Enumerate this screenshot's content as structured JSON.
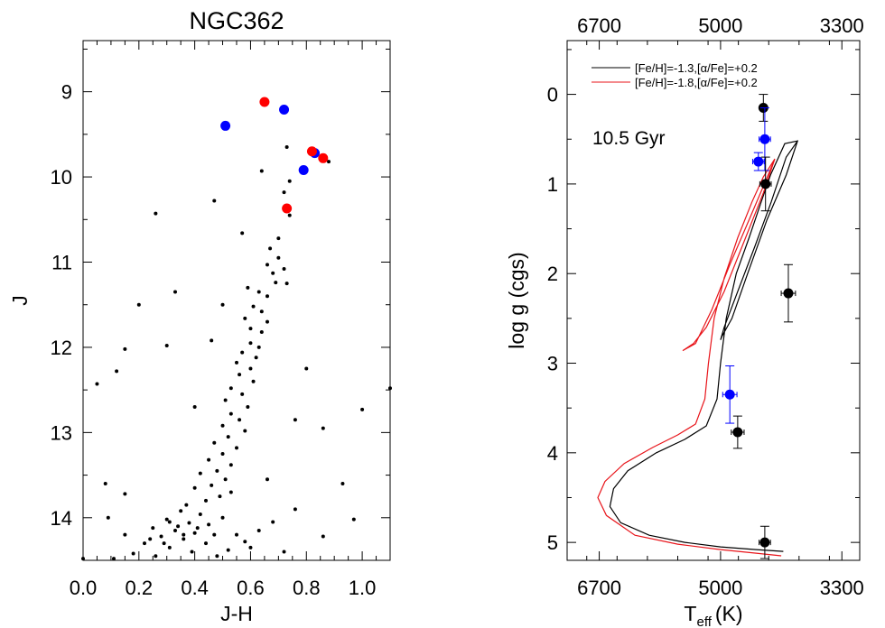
{
  "chart_data": [
    {
      "type": "scatter",
      "title": "NGC362",
      "xlabel": "J-H",
      "ylabel": "J",
      "xlim": [
        0.0,
        1.1
      ],
      "ylim": [
        14.5,
        8.4
      ],
      "y_inverted": true,
      "xticks": [
        0.0,
        0.2,
        0.4,
        0.6,
        0.8,
        1.0
      ],
      "xtick_labels": [
        "0.0",
        "0.2",
        "0.4",
        "0.6",
        "0.8",
        "1.0"
      ],
      "yticks": [
        9,
        10,
        11,
        12,
        13,
        14
      ],
      "ytick_labels": [
        "9",
        "10",
        "11",
        "12",
        "13",
        "14"
      ],
      "grid": false,
      "series": [
        {
          "color": "#000000",
          "marker": "small-dot",
          "points": [
            [
              0.73,
              9.65
            ],
            [
              0.64,
              9.93
            ],
            [
              0.88,
              9.82
            ],
            [
              0.74,
              10.05
            ],
            [
              0.72,
              10.18
            ],
            [
              0.47,
              10.28
            ],
            [
              0.74,
              10.45
            ],
            [
              0.26,
              10.43
            ],
            [
              0.57,
              10.66
            ],
            [
              0.7,
              10.72
            ],
            [
              0.67,
              10.84
            ],
            [
              0.7,
              10.95
            ],
            [
              0.66,
              11.03
            ],
            [
              0.68,
              11.13
            ],
            [
              0.72,
              11.08
            ],
            [
              0.69,
              11.24
            ],
            [
              0.73,
              11.25
            ],
            [
              0.59,
              11.3
            ],
            [
              0.63,
              11.35
            ],
            [
              0.66,
              11.4
            ],
            [
              0.33,
              11.35
            ],
            [
              0.2,
              11.5
            ],
            [
              0.5,
              11.5
            ],
            [
              0.61,
              11.52
            ],
            [
              0.64,
              11.58
            ],
            [
              0.58,
              11.66
            ],
            [
              0.66,
              11.7
            ],
            [
              0.6,
              11.78
            ],
            [
              0.64,
              11.82
            ],
            [
              0.46,
              11.92
            ],
            [
              0.6,
              11.95
            ],
            [
              0.63,
              12.0
            ],
            [
              0.57,
              12.06
            ],
            [
              0.62,
              12.12
            ],
            [
              0.55,
              12.18
            ],
            [
              0.3,
              11.98
            ],
            [
              0.15,
              12.02
            ],
            [
              0.6,
              12.25
            ],
            [
              0.56,
              12.32
            ],
            [
              0.61,
              12.4
            ],
            [
              0.12,
              12.28
            ],
            [
              0.05,
              12.43
            ],
            [
              0.53,
              12.48
            ],
            [
              0.57,
              12.55
            ],
            [
              0.51,
              12.62
            ],
            [
              0.59,
              12.7
            ],
            [
              0.8,
              12.25
            ],
            [
              0.53,
              12.78
            ],
            [
              0.56,
              12.85
            ],
            [
              0.5,
              12.92
            ],
            [
              0.58,
              12.98
            ],
            [
              0.4,
              12.7
            ],
            [
              0.76,
              12.85
            ],
            [
              0.86,
              12.95
            ],
            [
              1.0,
              12.73
            ],
            [
              0.52,
              13.05
            ],
            [
              0.47,
              13.12
            ],
            [
              0.55,
              13.18
            ],
            [
              0.5,
              13.25
            ],
            [
              0.45,
              13.32
            ],
            [
              0.53,
              13.38
            ],
            [
              0.48,
              13.45
            ],
            [
              0.42,
              13.48
            ],
            [
              0.51,
              13.55
            ],
            [
              0.46,
              13.62
            ],
            [
              0.4,
              13.65
            ],
            [
              0.53,
              13.7
            ],
            [
              0.49,
              13.75
            ],
            [
              0.44,
              13.8
            ],
            [
              0.37,
              13.85
            ],
            [
              0.08,
              13.6
            ],
            [
              0.15,
              13.72
            ],
            [
              0.66,
              13.55
            ],
            [
              0.76,
              13.9
            ],
            [
              0.93,
              13.6
            ],
            [
              0.35,
              13.92
            ],
            [
              0.42,
              13.96
            ],
            [
              0.5,
              14.0
            ],
            [
              0.3,
              14.02
            ],
            [
              0.38,
              14.06
            ],
            [
              0.45,
              14.08
            ],
            [
              0.25,
              14.12
            ],
            [
              0.33,
              14.15
            ],
            [
              0.4,
              14.18
            ],
            [
              0.28,
              14.22
            ],
            [
              0.36,
              14.25
            ],
            [
              0.22,
              14.3
            ],
            [
              0.44,
              14.3
            ],
            [
              0.31,
              14.35
            ],
            [
              0.39,
              14.4
            ],
            [
              0.18,
              14.42
            ],
            [
              0.26,
              14.45
            ],
            [
              0.48,
              14.45
            ],
            [
              0.55,
              14.2
            ],
            [
              0.6,
              14.35
            ],
            [
              0.09,
              14.0
            ],
            [
              0.15,
              14.2
            ],
            [
              0.11,
              14.48
            ],
            [
              0.86,
              14.22
            ],
            [
              0.97,
              14.02
            ],
            [
              1.1,
              12.48
            ],
            [
              0.0,
              14.48
            ],
            [
              0.68,
              14.05
            ],
            [
              0.72,
              14.4
            ],
            [
              0.34,
              14.1
            ],
            [
              0.31,
              14.05
            ],
            [
              0.36,
              14.2
            ],
            [
              0.29,
              14.3
            ],
            [
              0.41,
              14.12
            ],
            [
              0.24,
              14.25
            ],
            [
              0.47,
              14.2
            ],
            [
              0.52,
              14.38
            ],
            [
              0.58,
              14.28
            ],
            [
              0.63,
              14.15
            ]
          ]
        },
        {
          "color": "#0000ff",
          "marker": "large-dot",
          "points": [
            [
              0.51,
              9.4
            ],
            [
              0.72,
              9.21
            ],
            [
              0.83,
              9.72
            ],
            [
              0.79,
              9.92
            ]
          ]
        },
        {
          "color": "#ff0000",
          "marker": "large-dot",
          "points": [
            [
              0.65,
              9.12
            ],
            [
              0.82,
              9.7
            ],
            [
              0.86,
              9.78
            ],
            [
              0.73,
              10.37
            ]
          ]
        }
      ]
    },
    {
      "type": "line",
      "title": "",
      "xlabel_main": "T",
      "xlabel_sub": "eff",
      "xlabel_unit": "(K)",
      "ylabel": "log g (cgs)",
      "xlim": [
        7150,
        3050
      ],
      "ylim": [
        5.2,
        -0.6
      ],
      "y_inverted": true,
      "x_inverted": true,
      "xticks": [
        6700,
        5000,
        3300
      ],
      "xtick_labels": [
        "6700",
        "5000",
        "3300"
      ],
      "top_xticks": [
        6700,
        5000,
        3300
      ],
      "top_xtick_labels": [
        "6700",
        "5000",
        "3300"
      ],
      "yticks": [
        0,
        1,
        2,
        3,
        4,
        5
      ],
      "ytick_labels": [
        "0",
        "1",
        "2",
        "3",
        "4",
        "5"
      ],
      "grid": false,
      "legend_placement": "top-right",
      "annotation": "10.5 Gyr",
      "series": [
        {
          "name": "[Fe/H]=-1.3,[α/Fe]=+0.2",
          "color": "#000000",
          "points": [
            [
              4120,
              5.1
            ],
            [
              4500,
              5.08
            ],
            [
              5000,
              5.05
            ],
            [
              5500,
              5.0
            ],
            [
              6000,
              4.92
            ],
            [
              6400,
              4.78
            ],
            [
              6550,
              4.6
            ],
            [
              6500,
              4.4
            ],
            [
              6300,
              4.2
            ],
            [
              5900,
              4.0
            ],
            [
              5500,
              3.85
            ],
            [
              5200,
              3.7
            ],
            [
              5050,
              3.4
            ],
            [
              5000,
              3.0
            ],
            [
              4920,
              2.5
            ],
            [
              4780,
              2.0
            ],
            [
              4600,
              1.6
            ],
            [
              4430,
              1.2
            ],
            [
              4300,
              0.9
            ],
            [
              4100,
              0.55
            ],
            [
              3920,
              0.52
            ],
            [
              4080,
              0.9
            ],
            [
              4350,
              1.4
            ],
            [
              4620,
              2.0
            ],
            [
              4840,
              2.5
            ],
            [
              4980,
              2.7
            ],
            [
              5000,
              2.74
            ],
            [
              4950,
              2.6
            ],
            [
              4760,
              2.2
            ],
            [
              4520,
              1.7
            ],
            [
              4290,
              1.2
            ],
            [
              4080,
              0.7
            ],
            [
              3920,
              0.52
            ]
          ]
        },
        {
          "name": "[Fe/H]=-1.8,[α/Fe]=+0.2",
          "color": "#e8141a",
          "points": [
            [
              4150,
              5.15
            ],
            [
              4500,
              5.12
            ],
            [
              5000,
              5.08
            ],
            [
              5600,
              5.02
            ],
            [
              6200,
              4.92
            ],
            [
              6600,
              4.7
            ],
            [
              6720,
              4.5
            ],
            [
              6620,
              4.32
            ],
            [
              6350,
              4.12
            ],
            [
              5950,
              3.94
            ],
            [
              5600,
              3.8
            ],
            [
              5350,
              3.68
            ],
            [
              5220,
              3.4
            ],
            [
              5170,
              3.0
            ],
            [
              5090,
              2.5
            ],
            [
              4950,
              2.05
            ],
            [
              4760,
              1.6
            ],
            [
              4560,
              1.2
            ],
            [
              4400,
              0.92
            ],
            [
              4240,
              0.72
            ],
            [
              4400,
              1.1
            ],
            [
              4650,
              1.6
            ],
            [
              4950,
              2.2
            ],
            [
              5200,
              2.6
            ],
            [
              5380,
              2.78
            ],
            [
              5530,
              2.86
            ],
            [
              5350,
              2.78
            ],
            [
              5120,
              2.4
            ],
            [
              4870,
              1.9
            ],
            [
              4600,
              1.4
            ],
            [
              4360,
              0.95
            ],
            [
              4240,
              0.72
            ]
          ]
        }
      ],
      "points": [
        {
          "color": "#000000",
          "teff": 4400,
          "logg": 0.15,
          "xerr": 0,
          "yerr": 0.15
        },
        {
          "color": "#0000ff",
          "teff": 4380,
          "logg": 0.5,
          "xerr": 80,
          "yerr": 0.35
        },
        {
          "color": "#0000ff",
          "teff": 4470,
          "logg": 0.75,
          "xerr": 80,
          "yerr": 0.1
        },
        {
          "color": "#000000",
          "teff": 4370,
          "logg": 1.0,
          "xerr": 80,
          "yerr": 0.3
        },
        {
          "color": "#000000",
          "teff": 4050,
          "logg": 2.22,
          "xerr": 100,
          "yerr": 0.32
        },
        {
          "color": "#0000ff",
          "teff": 4870,
          "logg": 3.35,
          "xerr": 100,
          "yerr": 0.32
        },
        {
          "color": "#000000",
          "teff": 4760,
          "logg": 3.77,
          "xerr": 90,
          "yerr": 0.18
        },
        {
          "color": "#000000",
          "teff": 4380,
          "logg": 5.0,
          "xerr": 80,
          "yerr": 0.18
        }
      ]
    }
  ]
}
